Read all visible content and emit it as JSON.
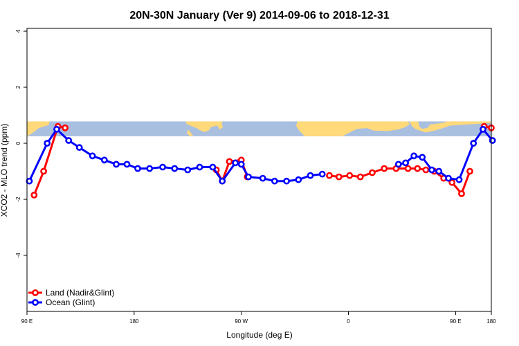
{
  "chart_data": {
    "type": "line",
    "title": "20N-30N January (Ver 9)   2014-09-06 to 2018-12-31",
    "xlabel": "Longitude (deg E)",
    "ylabel": "XCO2 - MLO trend (ppm)",
    "xlim": [
      90,
      480
    ],
    "ylim": [
      -6,
      4.1
    ],
    "x_ticks": [
      {
        "value": 90,
        "label": "90 E"
      },
      {
        "value": 180,
        "label": "180"
      },
      {
        "value": 270,
        "label": "90 W"
      },
      {
        "value": 360,
        "label": "0"
      },
      {
        "value": 450,
        "label": "90 E"
      },
      {
        "value": 540,
        "label": "180"
      }
    ],
    "y_ticks": [
      {
        "value": 4,
        "label": "4"
      },
      {
        "value": 2,
        "label": "2"
      },
      {
        "value": 0,
        "label": "0"
      },
      {
        "value": -2,
        "label": "-2"
      },
      {
        "value": -4,
        "label": "-4"
      }
    ],
    "grid": false,
    "legend_position": "bottom-left",
    "series": [
      {
        "name": "Land (Nadir&Glint)",
        "color": "#ff0000",
        "segments": [
          [
            [
              96,
              -1.85
            ],
            [
              104,
              -1
            ],
            [
              116,
              0.6
            ],
            [
              122,
              0.55
            ]
          ],
          [
            [
              249,
              -0.95
            ],
            [
              254,
              -1.35
            ],
            [
              260,
              -0.65
            ],
            [
              270,
              -0.6
            ],
            [
              275,
              -1.2
            ]
          ],
          [
            [
              344,
              -1.15
            ],
            [
              352,
              -1.2
            ],
            [
              361,
              -1.15
            ],
            [
              370,
              -1.2
            ],
            [
              380,
              -1.05
            ],
            [
              390,
              -0.9
            ],
            [
              400,
              -0.9
            ],
            [
              410,
              -0.9
            ],
            [
              418,
              -0.9
            ],
            [
              425,
              -0.95
            ],
            [
              432,
              -1.0
            ],
            [
              440,
              -1.25
            ],
            [
              447,
              -1.4
            ],
            [
              455,
              -1.8
            ],
            [
              462,
              -1.0
            ]
          ],
          [
            [
              474,
              0.6
            ],
            [
              480,
              0.55
            ]
          ]
        ]
      },
      {
        "name": "Ocean (Glint)",
        "color": "#0000ff",
        "segments": [
          [
            [
              92,
              -1.35
            ],
            [
              107,
              0.0
            ],
            [
              115,
              0.5
            ],
            [
              125,
              0.1
            ],
            [
              134,
              -0.15
            ],
            [
              145,
              -0.45
            ],
            [
              155,
              -0.6
            ],
            [
              165,
              -0.75
            ],
            [
              174,
              -0.75
            ],
            [
              183,
              -0.9
            ],
            [
              193,
              -0.9
            ],
            [
              204,
              -0.85
            ],
            [
              214,
              -0.9
            ],
            [
              225,
              -0.95
            ],
            [
              235,
              -0.85
            ],
            [
              246,
              -0.85
            ],
            [
              254,
              -1.35
            ],
            [
              265,
              -0.7
            ],
            [
              270,
              -0.75
            ],
            [
              276,
              -1.2
            ],
            [
              288,
              -1.25
            ],
            [
              298,
              -1.35
            ],
            [
              308,
              -1.35
            ],
            [
              318,
              -1.3
            ],
            [
              328,
              -1.15
            ],
            [
              338,
              -1.1
            ]
          ],
          [
            [
              402,
              -0.75
            ],
            [
              408,
              -0.7
            ],
            [
              415,
              -0.45
            ],
            [
              422,
              -0.5
            ],
            [
              430,
              -0.95
            ],
            [
              436,
              -1.0
            ],
            [
              444,
              -1.25
            ],
            [
              453,
              -1.3
            ],
            [
              465,
              0.0
            ],
            [
              473,
              0.5
            ],
            [
              481,
              0.1
            ]
          ]
        ]
      }
    ]
  },
  "legend": [
    {
      "label": "Land (Nadir&Glint)",
      "color": "#ff0000"
    },
    {
      "label": "Ocean (Glint)",
      "color": "#0000ff"
    }
  ],
  "map_strip": {
    "ocean_color": "#a9bfe0",
    "land_color": "#ffd97a",
    "y_top": 0.78,
    "y_bottom": 0.25
  }
}
